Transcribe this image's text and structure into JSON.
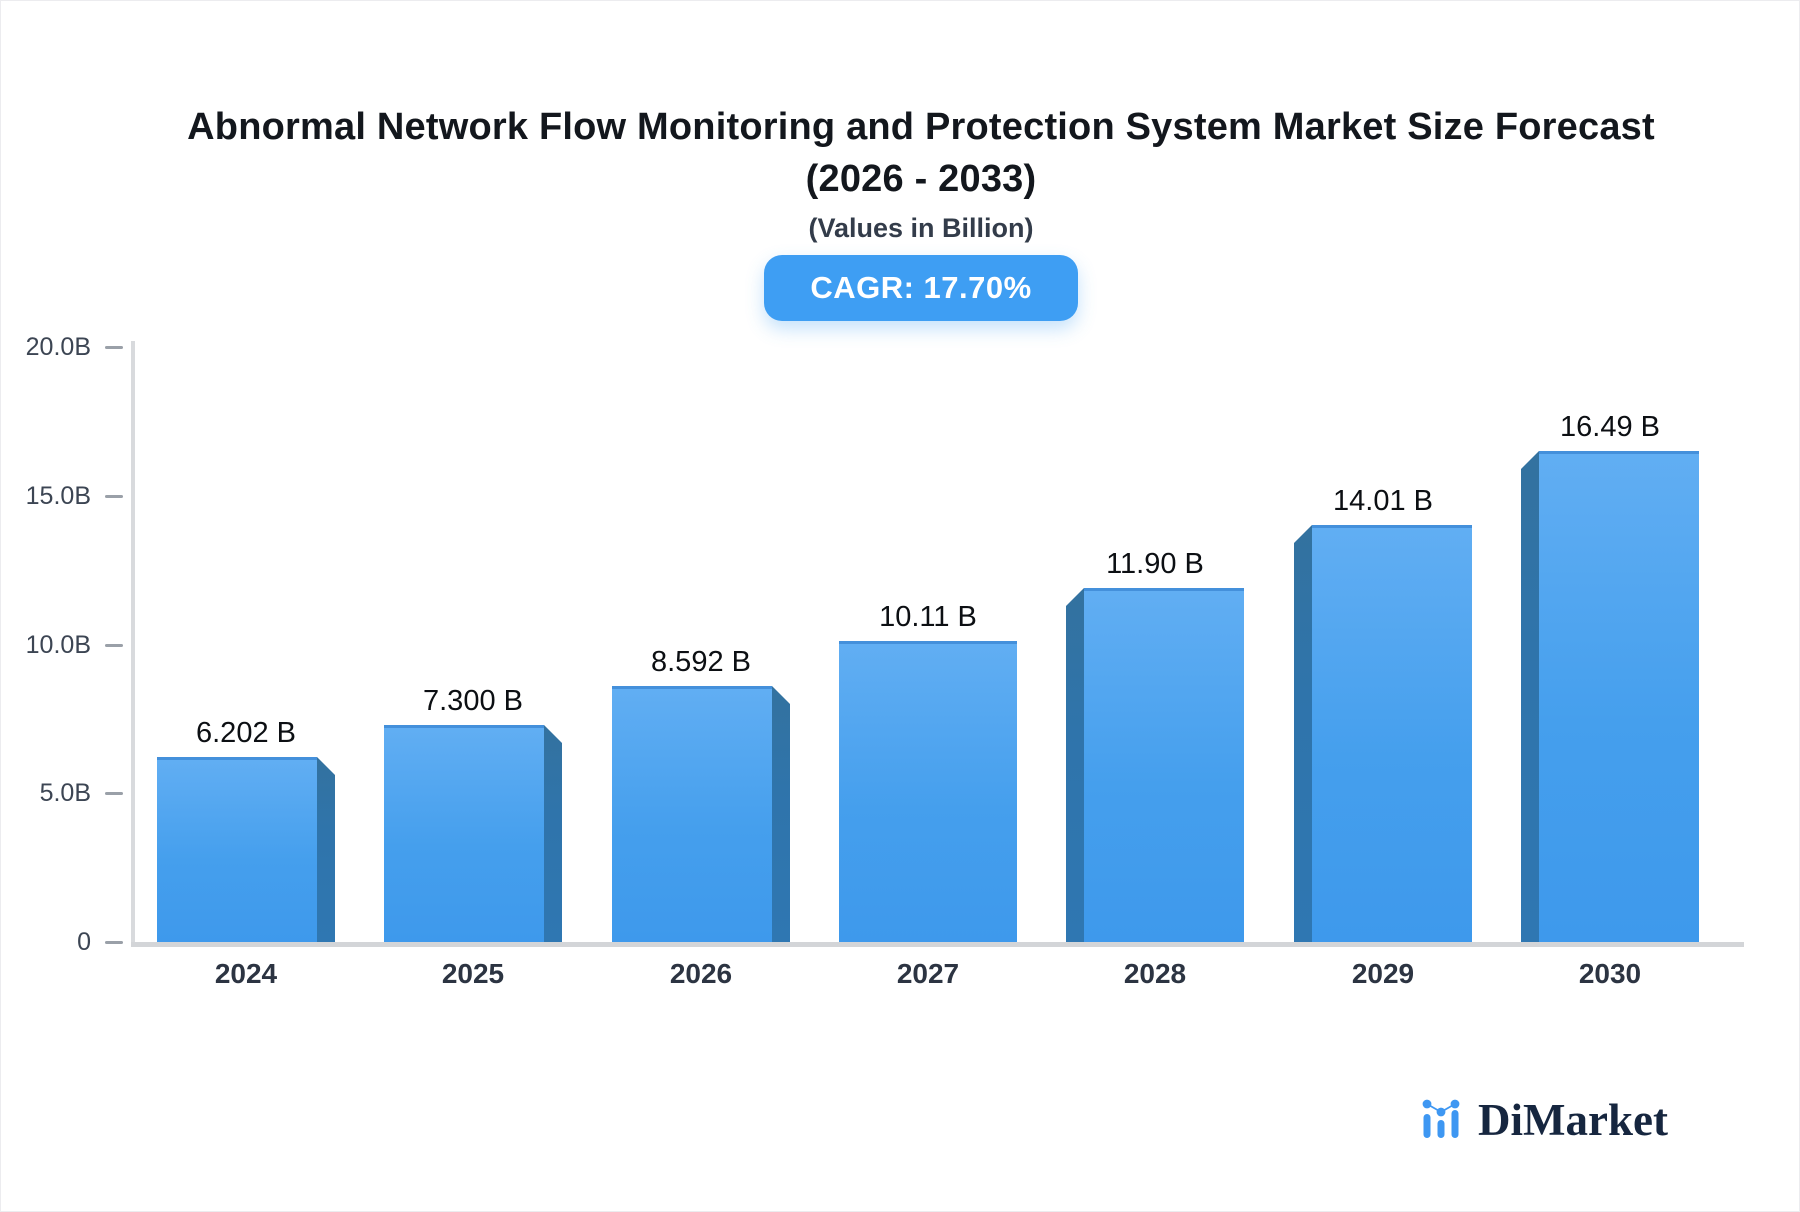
{
  "header": {
    "title_line1": "Abnormal Network Flow Monitoring and Protection System Market Size Forecast",
    "title_line2": "(2026 - 2033)",
    "subtitle": "(Values in Billion)",
    "cagr_badge": "CAGR: 17.70%"
  },
  "chart_data": {
    "type": "bar",
    "title": "Abnormal Network Flow Monitoring and Protection System Market Size Forecast (2026 - 2033)",
    "subtitle": "(Values in Billion)",
    "cagr": "17.70%",
    "categories": [
      "2024",
      "2025",
      "2026",
      "2027",
      "2028",
      "2029",
      "2030"
    ],
    "values": [
      6.202,
      7.3,
      8.592,
      10.11,
      11.9,
      14.01,
      16.49
    ],
    "value_labels": [
      "6.202 B",
      "7.300 B",
      "8.592 B",
      "10.11 B",
      "11.90 B",
      "14.01 B",
      "16.49 B"
    ],
    "unit": "Billion",
    "xlabel": "",
    "ylabel": "",
    "ylim": [
      0,
      20
    ],
    "y_ticks": [
      {
        "value": 20,
        "label": "20.0B"
      },
      {
        "value": 15,
        "label": "15.0B"
      },
      {
        "value": 10,
        "label": "10.0B"
      },
      {
        "value": 5,
        "label": "5.0B"
      },
      {
        "value": 0,
        "label": "0"
      }
    ],
    "grid": false,
    "legend": false,
    "bar_face_color": "#459FED",
    "bar_side_color": "#2F74AB"
  },
  "footer": {
    "brand": "DiMarket"
  },
  "colors": {
    "accent_blue": "#3E9EF3",
    "axis_gray": "#D5D7DA",
    "text_dark": "#13171D"
  }
}
